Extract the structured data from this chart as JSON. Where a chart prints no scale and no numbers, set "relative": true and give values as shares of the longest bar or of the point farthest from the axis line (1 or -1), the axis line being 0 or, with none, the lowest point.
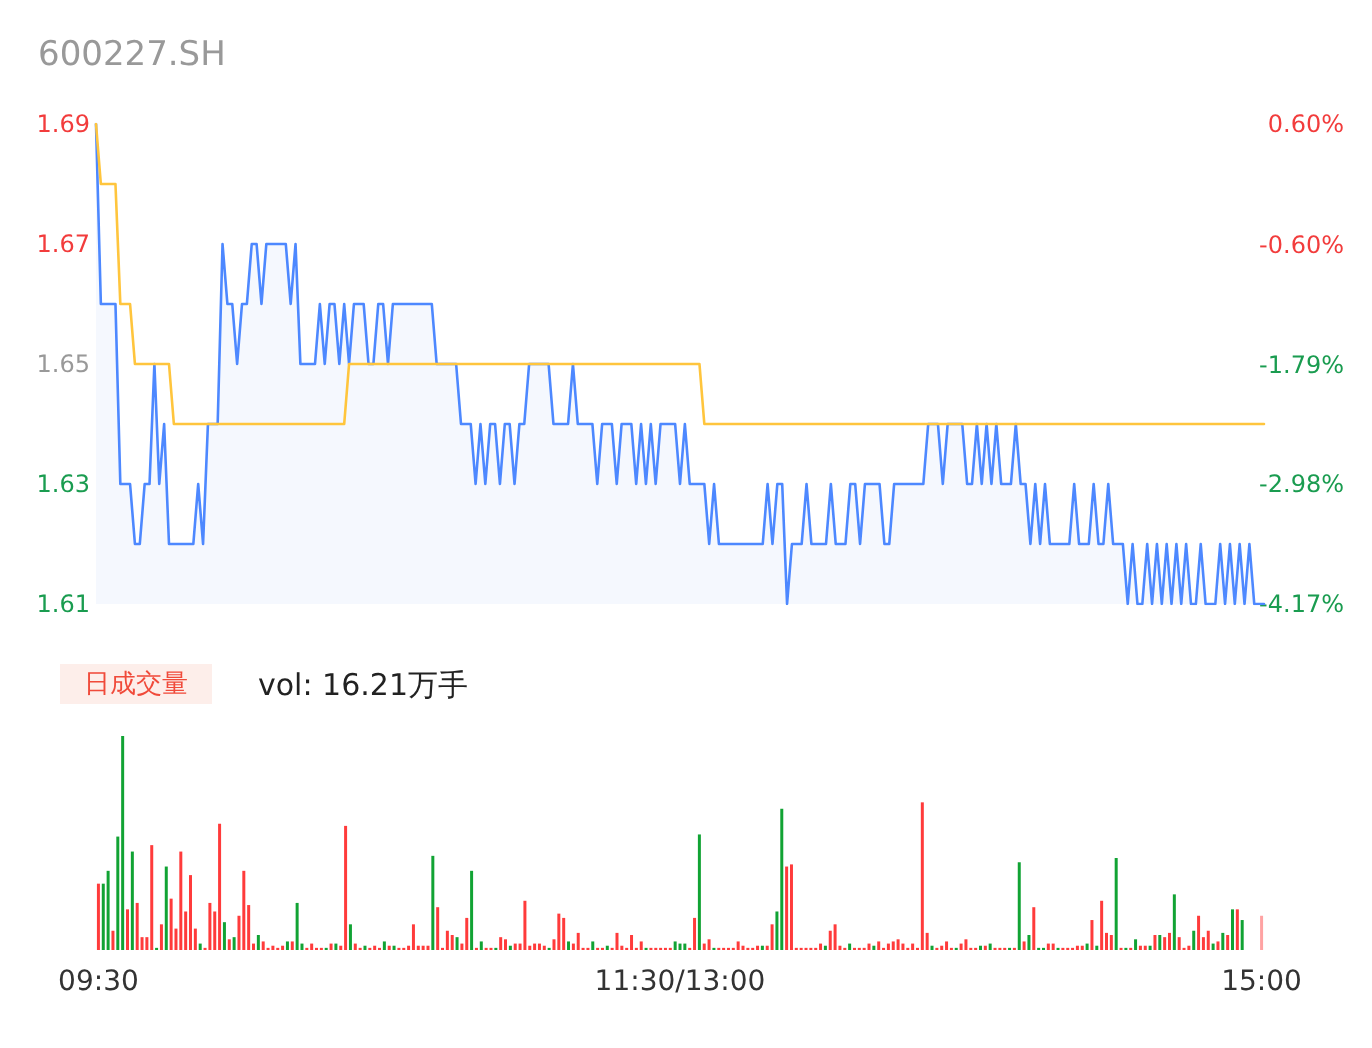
{
  "chart_data": [
    {
      "type": "line",
      "title": "600227.SH",
      "ylim": [
        1.61,
        1.69
      ],
      "yticks": [
        1.61,
        1.63,
        1.65,
        1.67,
        1.69
      ],
      "y2lim": [
        -4.17,
        0.6
      ],
      "y2ticks": [
        {
          "value": -4.17,
          "label": "-4.17%"
        },
        {
          "value": -2.98,
          "label": "-2.98%"
        },
        {
          "value": -1.79,
          "label": "-1.79%"
        },
        {
          "value": -0.6,
          "label": "-0.60%"
        },
        {
          "value": 0.6,
          "label": "0.60%"
        }
      ],
      "tick_labels": "y",
      "line_style": "solid",
      "categories": [
        null,
        null,
        null,
        null,
        null,
        null,
        null,
        null,
        null,
        null,
        null,
        null,
        null,
        null,
        null,
        null,
        null,
        null,
        null,
        null,
        null,
        null,
        null,
        null,
        null,
        null,
        null,
        null,
        null,
        null,
        null,
        null,
        null,
        null,
        null,
        null,
        null,
        null,
        null,
        null,
        null,
        null,
        null,
        null,
        null,
        null,
        null,
        null,
        null,
        null,
        null,
        null,
        null,
        null,
        null,
        null,
        null,
        null,
        null,
        null,
        null,
        null,
        null,
        null,
        null,
        null,
        null,
        null,
        null,
        null,
        null,
        null,
        null,
        null,
        null,
        null,
        null,
        null,
        null,
        null,
        null,
        null,
        null,
        null,
        null,
        null,
        null,
        null,
        null,
        null,
        null,
        null,
        null,
        null,
        null,
        null,
        null,
        null,
        null,
        null,
        null,
        null,
        null,
        null,
        null,
        null,
        null,
        null,
        null,
        null,
        null,
        null,
        null,
        null,
        null,
        null,
        null,
        null,
        null,
        null,
        null,
        null,
        null,
        null,
        null,
        null,
        null,
        null,
        null,
        null,
        null,
        null,
        null,
        null,
        null,
        null,
        null,
        null,
        null,
        null,
        null,
        null,
        null,
        null,
        null,
        null,
        null,
        null,
        null,
        null,
        null,
        null,
        null,
        null,
        null,
        null,
        null,
        null,
        null,
        null,
        null,
        null,
        null,
        null,
        null,
        null,
        null,
        null,
        null,
        null,
        null,
        null,
        null,
        null,
        null,
        null,
        null,
        null,
        null,
        null,
        null,
        null,
        null,
        null,
        null,
        null,
        null,
        null,
        null,
        null,
        null,
        null,
        null,
        null,
        null,
        null,
        null,
        null,
        null,
        null,
        null,
        null,
        null,
        null,
        null,
        null,
        null,
        null,
        null,
        null,
        null,
        null,
        null,
        null,
        null,
        null,
        null,
        null,
        null,
        null,
        null,
        null,
        null,
        null,
        null,
        null,
        null,
        null,
        null,
        null,
        null,
        null,
        null,
        null,
        null,
        null,
        null,
        null,
        null,
        null,
        null
      ],
      "series": [
        {
          "type": "area",
          "color": "#4d88ff",
          "values": [
            1.69,
            1.66,
            1.66,
            1.66,
            1.66,
            1.63,
            1.63,
            1.63,
            1.62,
            1.62,
            1.63,
            1.63,
            1.65,
            1.63,
            1.64,
            1.62,
            1.62,
            1.62,
            1.62,
            1.62,
            1.62,
            1.63,
            1.62,
            1.64,
            1.64,
            1.64,
            1.67,
            1.66,
            1.66,
            1.65,
            1.66,
            1.66,
            1.67,
            1.67,
            1.66,
            1.67,
            1.67,
            1.67,
            1.67,
            1.67,
            1.66,
            1.67,
            1.65,
            1.65,
            1.65,
            1.65,
            1.66,
            1.65,
            1.66,
            1.66,
            1.65,
            1.66,
            1.65,
            1.66,
            1.66,
            1.66,
            1.65,
            1.65,
            1.66,
            1.66,
            1.65,
            1.66,
            1.66,
            1.66,
            1.66,
            1.66,
            1.66,
            1.66,
            1.66,
            1.66,
            1.65,
            1.65,
            1.65,
            1.65,
            1.65,
            1.64,
            1.64,
            1.64,
            1.63,
            1.64,
            1.63,
            1.64,
            1.64,
            1.63,
            1.64,
            1.64,
            1.63,
            1.64,
            1.64,
            1.65,
            1.65,
            1.65,
            1.65,
            1.65,
            1.64,
            1.64,
            1.64,
            1.64,
            1.65,
            1.64,
            1.64,
            1.64,
            1.64,
            1.63,
            1.64,
            1.64,
            1.64,
            1.63,
            1.64,
            1.64,
            1.64,
            1.63,
            1.64,
            1.63,
            1.64,
            1.63,
            1.64,
            1.64,
            1.64,
            1.64,
            1.63,
            1.64,
            1.63,
            1.63,
            1.63,
            1.63,
            1.62,
            1.63,
            1.62,
            1.62,
            1.62,
            1.62,
            1.62,
            1.62,
            1.62,
            1.62,
            1.62,
            1.62,
            1.63,
            1.62,
            1.63,
            1.63,
            1.61,
            1.62,
            1.62,
            1.62,
            1.63,
            1.62,
            1.62,
            1.62,
            1.62,
            1.63,
            1.62,
            1.62,
            1.62,
            1.63,
            1.63,
            1.62,
            1.63,
            1.63,
            1.63,
            1.63,
            1.62,
            1.62,
            1.63,
            1.63,
            1.63,
            1.63,
            1.63,
            1.63,
            1.63,
            1.64,
            1.64,
            1.64,
            1.63,
            1.64,
            1.64,
            1.64,
            1.64,
            1.63,
            1.63,
            1.64,
            1.63,
            1.64,
            1.63,
            1.64,
            1.63,
            1.63,
            1.63,
            1.64,
            1.63,
            1.63,
            1.62,
            1.63,
            1.62,
            1.63,
            1.62,
            1.62,
            1.62,
            1.62,
            1.62,
            1.63,
            1.62,
            1.62,
            1.62,
            1.63,
            1.62,
            1.62,
            1.63,
            1.62,
            1.62,
            1.62,
            1.61,
            1.62,
            1.61,
            1.61,
            1.62,
            1.61,
            1.62,
            1.61,
            1.62,
            1.61,
            1.62,
            1.61,
            1.62,
            1.61,
            1.61,
            1.62,
            1.61,
            1.61,
            1.61,
            1.62,
            1.61,
            1.62,
            1.61,
            1.62,
            1.61,
            1.62,
            1.61,
            1.61,
            1.61
          ]
        },
        {
          "type": "line",
          "color": "#ffc53d",
          "values": [
            1.69,
            1.68,
            1.68,
            1.68,
            1.68,
            1.66,
            1.66,
            1.66,
            1.65,
            1.65,
            1.65,
            1.65,
            1.65,
            1.65,
            1.65,
            1.65,
            1.64,
            1.64,
            1.64,
            1.64,
            1.64,
            1.64,
            1.64,
            1.64,
            1.64,
            1.64,
            1.64,
            1.64,
            1.64,
            1.64,
            1.64,
            1.64,
            1.64,
            1.64,
            1.64,
            1.64,
            1.64,
            1.64,
            1.64,
            1.64,
            1.64,
            1.64,
            1.64,
            1.64,
            1.64,
            1.64,
            1.64,
            1.64,
            1.64,
            1.64,
            1.64,
            1.64,
            1.65,
            1.65,
            1.65,
            1.65,
            1.65,
            1.65,
            1.65,
            1.65,
            1.65,
            1.65,
            1.65,
            1.65,
            1.65,
            1.65,
            1.65,
            1.65,
            1.65,
            1.65,
            1.65,
            1.65,
            1.65,
            1.65,
            1.65,
            1.65,
            1.65,
            1.65,
            1.65,
            1.65,
            1.65,
            1.65,
            1.65,
            1.65,
            1.65,
            1.65,
            1.65,
            1.65,
            1.65,
            1.65,
            1.65,
            1.65,
            1.65,
            1.65,
            1.65,
            1.65,
            1.65,
            1.65,
            1.65,
            1.65,
            1.65,
            1.65,
            1.65,
            1.65,
            1.65,
            1.65,
            1.65,
            1.65,
            1.65,
            1.65,
            1.65,
            1.65,
            1.65,
            1.65,
            1.65,
            1.65,
            1.65,
            1.65,
            1.65,
            1.65,
            1.65,
            1.65,
            1.65,
            1.65,
            1.65,
            1.64,
            1.64,
            1.64,
            1.64,
            1.64,
            1.64,
            1.64,
            1.64,
            1.64,
            1.64,
            1.64,
            1.64,
            1.64,
            1.64,
            1.64,
            1.64,
            1.64,
            1.64,
            1.64,
            1.64,
            1.64,
            1.64,
            1.64,
            1.64,
            1.64,
            1.64,
            1.64,
            1.64,
            1.64,
            1.64,
            1.64,
            1.64,
            1.64,
            1.64,
            1.64,
            1.64,
            1.64,
            1.64,
            1.64,
            1.64,
            1.64,
            1.64,
            1.64,
            1.64,
            1.64,
            1.64,
            1.64,
            1.64,
            1.64,
            1.64,
            1.64,
            1.64,
            1.64,
            1.64,
            1.64,
            1.64,
            1.64,
            1.64,
            1.64,
            1.64,
            1.64,
            1.64,
            1.64,
            1.64,
            1.64,
            1.64,
            1.64,
            1.64,
            1.64,
            1.64,
            1.64,
            1.64,
            1.64,
            1.64,
            1.64,
            1.64,
            1.64,
            1.64,
            1.64,
            1.64,
            1.64,
            1.64,
            1.64,
            1.64,
            1.64,
            1.64,
            1.64,
            1.64,
            1.64,
            1.64,
            1.64,
            1.64,
            1.64,
            1.64,
            1.64,
            1.64,
            1.64,
            1.64,
            1.64,
            1.64,
            1.64,
            1.64,
            1.64,
            1.64,
            1.64,
            1.64,
            1.64,
            1.64,
            1.64,
            1.64,
            1.64,
            1.64,
            1.64,
            1.64,
            1.64,
            1.64
          ]
        }
      ]
    },
    {
      "type": "bar",
      "relative": true,
      "annotations": [
        "日成交量",
        "vol: 16.21万手"
      ],
      "categories": [
        "09:30",
        null,
        null,
        null,
        null,
        null,
        null,
        null,
        null,
        null,
        null,
        null,
        null,
        null,
        null,
        null,
        null,
        null,
        null,
        null,
        null,
        null,
        null,
        null,
        null,
        null,
        null,
        null,
        null,
        null,
        null,
        null,
        null,
        null,
        null,
        null,
        null,
        null,
        null,
        null,
        null,
        null,
        null,
        null,
        null,
        null,
        null,
        null,
        null,
        null,
        null,
        null,
        null,
        null,
        null,
        null,
        null,
        null,
        null,
        null,
        null,
        null,
        null,
        null,
        null,
        null,
        null,
        null,
        null,
        null,
        null,
        null,
        null,
        null,
        null,
        null,
        null,
        null,
        null,
        null,
        null,
        null,
        null,
        null,
        null,
        null,
        null,
        null,
        null,
        null,
        null,
        null,
        null,
        null,
        null,
        null,
        null,
        null,
        null,
        null,
        null,
        null,
        null,
        null,
        null,
        null,
        null,
        null,
        null,
        null,
        null,
        null,
        null,
        null,
        null,
        null,
        null,
        null,
        null,
        null,
        "11:30/13:00",
        null,
        null,
        null,
        null,
        null,
        null,
        null,
        null,
        null,
        null,
        null,
        null,
        null,
        null,
        null,
        null,
        null,
        null,
        null,
        null,
        null,
        null,
        null,
        null,
        null,
        null,
        null,
        null,
        null,
        null,
        null,
        null,
        null,
        null,
        null,
        null,
        null,
        null,
        null,
        null,
        null,
        null,
        null,
        null,
        null,
        null,
        null,
        null,
        null,
        null,
        null,
        null,
        null,
        null,
        null,
        null,
        null,
        null,
        null,
        null,
        null,
        null,
        null,
        null,
        null,
        null,
        null,
        null,
        null,
        null,
        null,
        null,
        null,
        null,
        null,
        null,
        null,
        null,
        null,
        null,
        null,
        null,
        null,
        null,
        null,
        null,
        null,
        null,
        null,
        null,
        null,
        null,
        null,
        null,
        null,
        null,
        null,
        null,
        null,
        null,
        null,
        null,
        null,
        null,
        null,
        null,
        null,
        null,
        null,
        null,
        null,
        null,
        null,
        null,
        null,
        null,
        null,
        null,
        null,
        "15:00"
      ],
      "values": [
        0.31,
        0.31,
        0.37,
        0.09,
        0.53,
        1,
        0.19,
        0.46,
        0.22,
        0.06,
        0.06,
        0.49,
        0.01,
        0.12,
        0.39,
        0.24,
        0.1,
        0.46,
        0.18,
        0.35,
        0.1,
        0.03,
        0.01,
        0.22,
        0.18,
        0.59,
        0.13,
        0.05,
        0.06,
        0.16,
        0.37,
        0.21,
        0.03,
        0.07,
        0.04,
        0.01,
        0.02,
        0.01,
        0.02,
        0.04,
        0.04,
        0.22,
        0.03,
        0.01,
        0.03,
        0.01,
        0.01,
        0.01,
        0.03,
        0.03,
        0.02,
        0.58,
        0.12,
        0.03,
        0.01,
        0.02,
        0.01,
        0.02,
        0.01,
        0.04,
        0.02,
        0.02,
        0.01,
        0.01,
        0.02,
        0.12,
        0.02,
        0.02,
        0.02,
        0.44,
        0.2,
        0.01,
        0.09,
        0.07,
        0.06,
        0.03,
        0.15,
        0.37,
        0.01,
        0.04,
        0.01,
        0.01,
        0.01,
        0.06,
        0.05,
        0.02,
        0.03,
        0.03,
        0.23,
        0.02,
        0.03,
        0.03,
        0.02,
        0.01,
        0.05,
        0.17,
        0.15,
        0.04,
        0.03,
        0.08,
        0.01,
        0.01,
        0.04,
        0.01,
        0.01,
        0.02,
        0.01,
        0.08,
        0.02,
        0.01,
        0.07,
        0.01,
        0.04,
        0.01,
        0.01,
        0.01,
        0.01,
        0.01,
        0.01,
        0.04,
        0.03,
        0.03,
        0.01,
        0.15,
        0.54,
        0.03,
        0.05,
        0.01,
        0.01,
        0.01,
        0.01,
        0.01,
        0.04,
        0.02,
        0.01,
        0.01,
        0.02,
        0.02,
        0.02,
        0.12,
        0.18,
        0.66,
        0.39,
        0.4,
        0.01,
        0.01,
        0.01,
        0.01,
        0.01,
        0.03,
        0.02,
        0.09,
        0.12,
        0.02,
        0.01,
        0.03,
        0.01,
        0.01,
        0.01,
        0.03,
        0.02,
        0.04,
        0.01,
        0.03,
        0.04,
        0.05,
        0.03,
        0.01,
        0.03,
        0.01,
        0.69,
        0.08,
        0.02,
        0.01,
        0.02,
        0.04,
        0.01,
        0.01,
        0.03,
        0.05,
        0.01,
        0.01,
        0.02,
        0.02,
        0.03,
        0.01,
        0.01,
        0.01,
        0.01,
        0.01,
        0.41,
        0.04,
        0.07,
        0.2,
        0.01,
        0.01,
        0.03,
        0.03,
        0.01,
        0.01,
        0.01,
        0.01,
        0.02,
        0.02,
        0.03,
        0.14,
        0.02,
        0.23,
        0.08,
        0.07,
        0.43,
        0.01,
        0.01,
        0.01,
        0.05,
        0.02,
        0.02,
        0.02,
        0.07,
        0.07,
        0.06,
        0.08,
        0.26,
        0.06,
        0.01,
        0.02,
        0.09,
        0.16,
        0.06,
        0.09,
        0.03,
        0.04,
        0.08,
        0.07,
        0.19,
        0.19,
        0.14,
        null,
        null,
        null,
        0.16
      ],
      "colors": [
        "#ff3b3b",
        "#11a334",
        "#11a334",
        "#ff3b3b",
        "#11a334",
        "#11a334",
        "#ff3b3b",
        "#11a334",
        "#ff3b3b",
        "#ff3b3b",
        "#ff3b3b",
        "#ff3b3b",
        "#11a334",
        "#ff3b3b",
        "#11a334",
        "#ff3b3b",
        "#ff3b3b",
        "#ff3b3b",
        "#ff3b3b",
        "#ff3b3b",
        "#ff3b3b",
        "#11a334",
        "#ff3b3b",
        "#ff3b3b",
        "#ff3b3b",
        "#ff3b3b",
        "#11a334",
        "#ff3b3b",
        "#11a334",
        "#ff3b3b",
        "#ff3b3b",
        "#ff3b3b",
        "#ff3b3b",
        "#11a334",
        "#ff3b3b",
        "#ff3b3b",
        "#ff3b3b",
        "#ff3b3b",
        "#ff3b3b",
        "#11a334",
        "#ff3b3b",
        "#11a334",
        "#11a334",
        "#ff3b3b",
        "#ff3b3b",
        "#ff3b3b",
        "#ff3b3b",
        "#11a334",
        "#ff3b3b",
        "#11a334",
        "#ff3b3b",
        "#ff3b3b",
        "#11a334",
        "#ff3b3b",
        "#ff3b3b",
        "#11a334",
        "#ff3b3b",
        "#ff3b3b",
        "#ff3b3b",
        "#11a334",
        "#ff3b3b",
        "#11a334",
        "#ff3b3b",
        "#ff3b3b",
        "#ff3b3b",
        "#ff3b3b",
        "#ff3b3b",
        "#ff3b3b",
        "#ff3b3b",
        "#11a334",
        "#ff3b3b",
        "#ff3b3b",
        "#ff3b3b",
        "#ff3b3b",
        "#11a334",
        "#ff3b3b",
        "#ff3b3b",
        "#11a334",
        "#ff3b3b",
        "#11a334",
        "#ff3b3b",
        "#ff3b3b",
        "#11a334",
        "#ff3b3b",
        "#ff3b3b",
        "#11a334",
        "#ff3b3b",
        "#ff3b3b",
        "#ff3b3b",
        "#ff3b3b",
        "#ff3b3b",
        "#ff3b3b",
        "#ff3b3b",
        "#11a334",
        "#ff3b3b",
        "#ff3b3b",
        "#ff3b3b",
        "#11a334",
        "#ff3b3b",
        "#ff3b3b",
        "#ff3b3b",
        "#ff3b3b",
        "#11a334",
        "#ff3b3b",
        "#ff3b3b",
        "#11a334",
        "#ff3b3b",
        "#ff3b3b",
        "#ff3b3b",
        "#ff3b3b",
        "#ff3b3b",
        "#ff3b3b",
        "#ff3b3b",
        "#11a334",
        "#ff3b3b",
        "#ff3b3b",
        "#ff3b3b",
        "#ff3b3b",
        "#ff3b3b",
        "#11a334",
        "#11a334",
        "#11a334",
        "#ff3b3b",
        "#ff3b3b",
        "#11a334",
        "#ff3b3b",
        "#ff3b3b",
        "#11a334",
        "#ff3b3b",
        "#ff3b3b",
        "#ff3b3b",
        "#ff3b3b",
        "#ff3b3b",
        "#ff3b3b",
        "#ff3b3b",
        "#ff3b3b",
        "#ff3b3b",
        "#11a334",
        "#ff3b3b",
        "#ff3b3b",
        "#11a334",
        "#11a334",
        "#ff3b3b",
        "#ff3b3b",
        "#ff3b3b",
        "#ff3b3b",
        "#ff3b3b",
        "#ff3b3b",
        "#ff3b3b",
        "#ff3b3b",
        "#11a334",
        "#ff3b3b",
        "#ff3b3b",
        "#ff3b3b",
        "#ff3b3b",
        "#11a334",
        "#ff3b3b",
        "#ff3b3b",
        "#ff3b3b",
        "#ff3b3b",
        "#11a334",
        "#ff3b3b",
        "#ff3b3b",
        "#ff3b3b",
        "#ff3b3b",
        "#ff3b3b",
        "#ff3b3b",
        "#ff3b3b",
        "#ff3b3b",
        "#ff3b3b",
        "#ff3b3b",
        "#ff3b3b",
        "#11a334",
        "#ff3b3b",
        "#ff3b3b",
        "#ff3b3b",
        "#ff3b3b",
        "#11a334",
        "#ff3b3b",
        "#ff3b3b",
        "#ff3b3b",
        "#ff3b3b",
        "#11a334",
        "#ff3b3b",
        "#11a334",
        "#ff3b3b",
        "#ff3b3b",
        "#ff3b3b",
        "#11a334",
        "#ff3b3b",
        "#11a334",
        "#ff3b3b",
        "#11a334",
        "#ff3b3b",
        "#11a334",
        "#11a334",
        "#ff3b3b",
        "#ff3b3b",
        "#11a334",
        "#ff3b3b",
        "#ff3b3b",
        "#ff3b3b",
        "#ff3b3b",
        "#ff3b3b",
        "#11a334",
        "#ff3b3b",
        "#11a334",
        "#ff3b3b",
        "#ff3b3b",
        "#ff3b3b",
        "#11a334",
        "#ff3b3b",
        "#11a334",
        "#ff3b3b",
        "#11a334",
        "#ff3b3b",
        "#ff3b3b",
        "#11a334",
        "#ff3b3b",
        "#11a334",
        "#ff3b3b",
        "#ff3b3b",
        "#11a334",
        "#ff3b3b",
        "#ff3b3b",
        "#ff3b3b",
        "#11a334",
        "#ff3b3b",
        "#ff3b3b",
        "#ff3b3b",
        "#11a334",
        "#ff3b3b",
        "#11a334",
        "#ff3b3b",
        "#11a334",
        "#ff3b3b",
        "#11a334",
        null,
        null,
        null,
        "#ffa3a3"
      ]
    }
  ]
}
